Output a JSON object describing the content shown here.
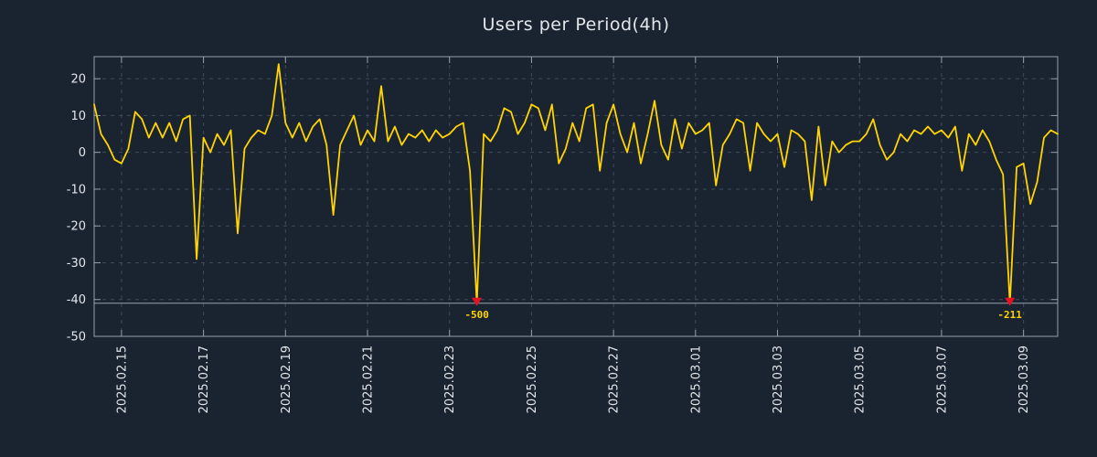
{
  "page": {
    "background": "#1a2330"
  },
  "chart_data": {
    "type": "line",
    "title": "Users per Period(4h)",
    "x_tick_labels": [
      "2025.02.15",
      "2025.02.17",
      "2025.02.19",
      "2025.02.21",
      "2025.02.23",
      "2025.02.25",
      "2025.02.27",
      "2025.03.01",
      "2025.03.03",
      "2025.03.05",
      "2025.03.07",
      "2025.03.09"
    ],
    "x_tick_indices": [
      4,
      16,
      28,
      40,
      52,
      64,
      76,
      88,
      100,
      112,
      124,
      136
    ],
    "y_ticks": [
      20,
      10,
      0,
      -10,
      -20,
      -30,
      -40,
      -50
    ],
    "ylim": [
      -50,
      26
    ],
    "clip_line": -41,
    "series": [
      {
        "name": "users-per-4h",
        "color": "#ffd400",
        "values": [
          13,
          5,
          2,
          -2,
          -3,
          1,
          11,
          9,
          4,
          8,
          4,
          8,
          3,
          9,
          10,
          -29,
          4,
          0,
          5,
          2,
          6,
          -22,
          1,
          4,
          6,
          5,
          10,
          24,
          8,
          4,
          8,
          3,
          7,
          9,
          2,
          -17,
          2,
          6,
          10,
          2,
          6,
          3,
          18,
          3,
          7,
          2,
          5,
          4,
          6,
          3,
          6,
          4,
          5,
          7,
          8,
          -5,
          -500,
          5,
          3,
          6,
          12,
          11,
          5,
          8,
          13,
          12,
          6,
          13,
          -3,
          1,
          8,
          3,
          12,
          13,
          -5,
          8,
          13,
          5,
          0,
          8,
          -3,
          5,
          14,
          2,
          -2,
          9,
          1,
          8,
          5,
          6,
          8,
          -9,
          2,
          5,
          9,
          8,
          -5,
          8,
          5,
          3,
          5,
          -4,
          6,
          5,
          3,
          -13,
          7,
          -9,
          3,
          0,
          2,
          3,
          3,
          5,
          9,
          2,
          -2,
          0,
          5,
          3,
          6,
          5,
          7,
          5,
          6,
          4,
          7,
          -5,
          5,
          2,
          6,
          3,
          -2,
          -6,
          -211,
          -4,
          -3,
          -14,
          -8,
          4,
          6,
          5
        ]
      }
    ],
    "annotations": [
      {
        "index": 56,
        "label": "-500"
      },
      {
        "index": 134,
        "label": "-211"
      }
    ],
    "grid": {
      "show": true,
      "color": "#3e4b5e",
      "dash": "4 5"
    },
    "axis_color": "#97a1ad",
    "text_color": "#e4e7ea",
    "marker_color": "#e81123",
    "annotation_color": "#ffd400",
    "legend_position": "none"
  }
}
